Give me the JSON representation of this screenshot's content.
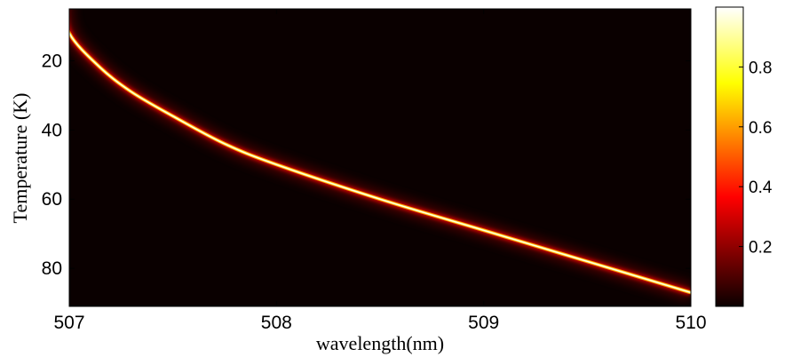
{
  "chart_data": {
    "type": "heatmap",
    "title": "",
    "xlabel": "wavelength(nm)",
    "ylabel": "Temperature (K)",
    "xlim": [
      507,
      510
    ],
    "ylim": [
      91,
      5
    ],
    "y_axis_reversed": true,
    "x_ticks": [
      507,
      508,
      509,
      510
    ],
    "y_ticks": [
      20,
      40,
      60,
      80
    ],
    "colormap": "hot",
    "colorbar": {
      "range": [
        0,
        1
      ],
      "ticks": [
        0.2,
        0.4,
        0.6,
        0.8
      ],
      "tick_labels": [
        "0.2",
        "0.4",
        "0.6",
        "0.8"
      ]
    },
    "peak_curve": {
      "description_value": "normalized intensity peak (value 1) along this curve",
      "points": [
        {
          "x": 507.0,
          "y": 12
        },
        {
          "x": 507.15,
          "y": 22
        },
        {
          "x": 507.3,
          "y": 29
        },
        {
          "x": 507.5,
          "y": 36
        },
        {
          "x": 507.75,
          "y": 44
        },
        {
          "x": 508.0,
          "y": 50
        },
        {
          "x": 508.5,
          "y": 60
        },
        {
          "x": 509.0,
          "y": 69
        },
        {
          "x": 509.5,
          "y": 78
        },
        {
          "x": 510.0,
          "y": 87
        }
      ]
    },
    "grid": false,
    "colors": {
      "background": "#0a0000",
      "peak": "#ffffff"
    }
  }
}
